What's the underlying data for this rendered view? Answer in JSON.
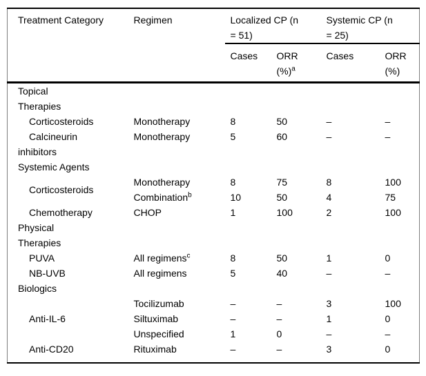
{
  "table": {
    "header": {
      "col1": "Treatment Category",
      "col2": "Regimen",
      "group1": "Localized CP (n\n= 51)",
      "group2": "Systemic CP (n\n= 25)",
      "sub": {
        "loc_cases": "Cases",
        "loc_orr": "ORR\n(%)",
        "loc_orr_sup": "a",
        "sys_cases": "Cases",
        "sys_orr": "ORR\n(%)"
      }
    },
    "rows": [
      {
        "category": "Topical\nTherapies"
      },
      {
        "category": "Corticosteroids",
        "regimen": "Monotherapy",
        "loc_cases": "8",
        "loc_orr": "50",
        "sys_cases": "–",
        "sys_orr": "–"
      },
      {
        "category": "Calcineurin\ninhibitors",
        "regimen": "Monotherapy",
        "loc_cases": "5",
        "loc_orr": "60",
        "sys_cases": "–",
        "sys_orr": "–"
      },
      {
        "category": "Systemic Agents"
      },
      {
        "category": "Corticosteroids",
        "regimen": "Monotherapy",
        "loc_cases": "8",
        "loc_orr": "75",
        "sys_cases": "8",
        "sys_orr": "100"
      },
      {
        "regimen": "Combination",
        "regimen_sup": "b",
        "loc_cases": "10",
        "loc_orr": "50",
        "sys_cases": "4",
        "sys_orr": "75"
      },
      {
        "category": "Chemotherapy",
        "regimen": "CHOP",
        "loc_cases": "1",
        "loc_orr": "100",
        "sys_cases": "2",
        "sys_orr": "100"
      },
      {
        "category": "Physical\nTherapies"
      },
      {
        "category": "PUVA",
        "regimen": "All regimens",
        "regimen_sup": "c",
        "loc_cases": "8",
        "loc_orr": "50",
        "sys_cases": "1",
        "sys_orr": "0"
      },
      {
        "category": "NB-UVB",
        "regimen": "All regimens",
        "loc_cases": "5",
        "loc_orr": "40",
        "sys_cases": "–",
        "sys_orr": "–"
      },
      {
        "category": "Biologics"
      },
      {
        "category": "Anti-IL-6",
        "regimen": "Tocilizumab",
        "loc_cases": "–",
        "loc_orr": "–",
        "sys_cases": "3",
        "sys_orr": "100"
      },
      {
        "regimen": "Siltuximab",
        "loc_cases": "–",
        "loc_orr": "–",
        "sys_cases": "1",
        "sys_orr": "0"
      },
      {
        "regimen": "Unspecified",
        "loc_cases": "1",
        "loc_orr": "0",
        "sys_cases": "–",
        "sys_orr": "–"
      },
      {
        "category": "Anti-CD20",
        "regimen": "Rituximab",
        "loc_cases": "–",
        "loc_orr": "–",
        "sys_cases": "3",
        "sys_orr": "0"
      }
    ]
  }
}
